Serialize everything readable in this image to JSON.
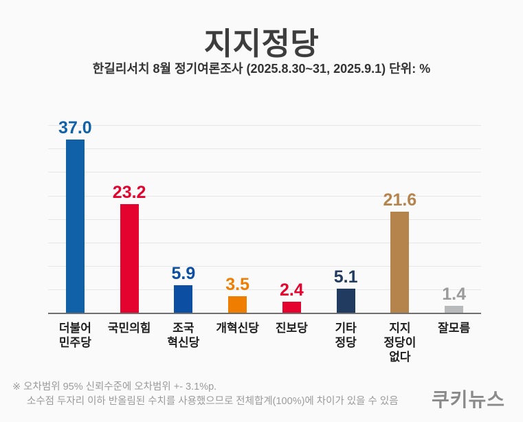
{
  "header": {
    "title": "지지정당",
    "subtitle": "한길리서치 8월 정기여론조사 (2025.8.30~31, 2025.9.1) 단위: %"
  },
  "chart_data": {
    "type": "bar",
    "title": "지지정당",
    "unit": "%",
    "categories": [
      "더불어민주당",
      "국민의힘",
      "조국혁신당",
      "개혁신당",
      "진보당",
      "기타정당",
      "지지정당이 없다",
      "잘모름"
    ],
    "category_display_lines": [
      [
        "더불어",
        "민주당"
      ],
      [
        "국민의힘"
      ],
      [
        "조국",
        "혁신당"
      ],
      [
        "개혁신당"
      ],
      [
        "진보당"
      ],
      [
        "기타",
        "정당"
      ],
      [
        "지지",
        "정당이",
        "없다"
      ],
      [
        "잘모름"
      ]
    ],
    "values": [
      37.0,
      23.2,
      5.9,
      3.5,
      2.4,
      5.1,
      21.6,
      1.4
    ],
    "value_labels": [
      "37.0",
      "23.2",
      "5.9",
      "3.5",
      "2.4",
      "5.1",
      "21.6",
      "1.4"
    ],
    "bar_colors": [
      "#1161A8",
      "#E4032E",
      "#0B4EA2",
      "#EE7D00",
      "#E4032E",
      "#213A5F",
      "#B5834C",
      "#B7B9BB"
    ],
    "value_label_colors": [
      "#1161A8",
      "#E4032E",
      "#0B4EA2",
      "#EE7D00",
      "#E4032E",
      "#213A5F",
      "#B5834C",
      "#9A9A9A"
    ],
    "ylim": [
      0,
      44
    ],
    "gridline_values": [
      5,
      10,
      15,
      20,
      25,
      30,
      35,
      40
    ],
    "grid": "horizontal",
    "legend": "none",
    "xlabel": "",
    "ylabel": ""
  },
  "footnote": {
    "line1": "※ 오차범위 95% 신뢰수준에 오차범위 +- 3.1%p.",
    "line2": "소수점 두자리 이하 반올림된 수치를 사용했으므로 전체합계(100%)에 차이가 있을 수 있음"
  },
  "logo": "쿠키뉴스"
}
